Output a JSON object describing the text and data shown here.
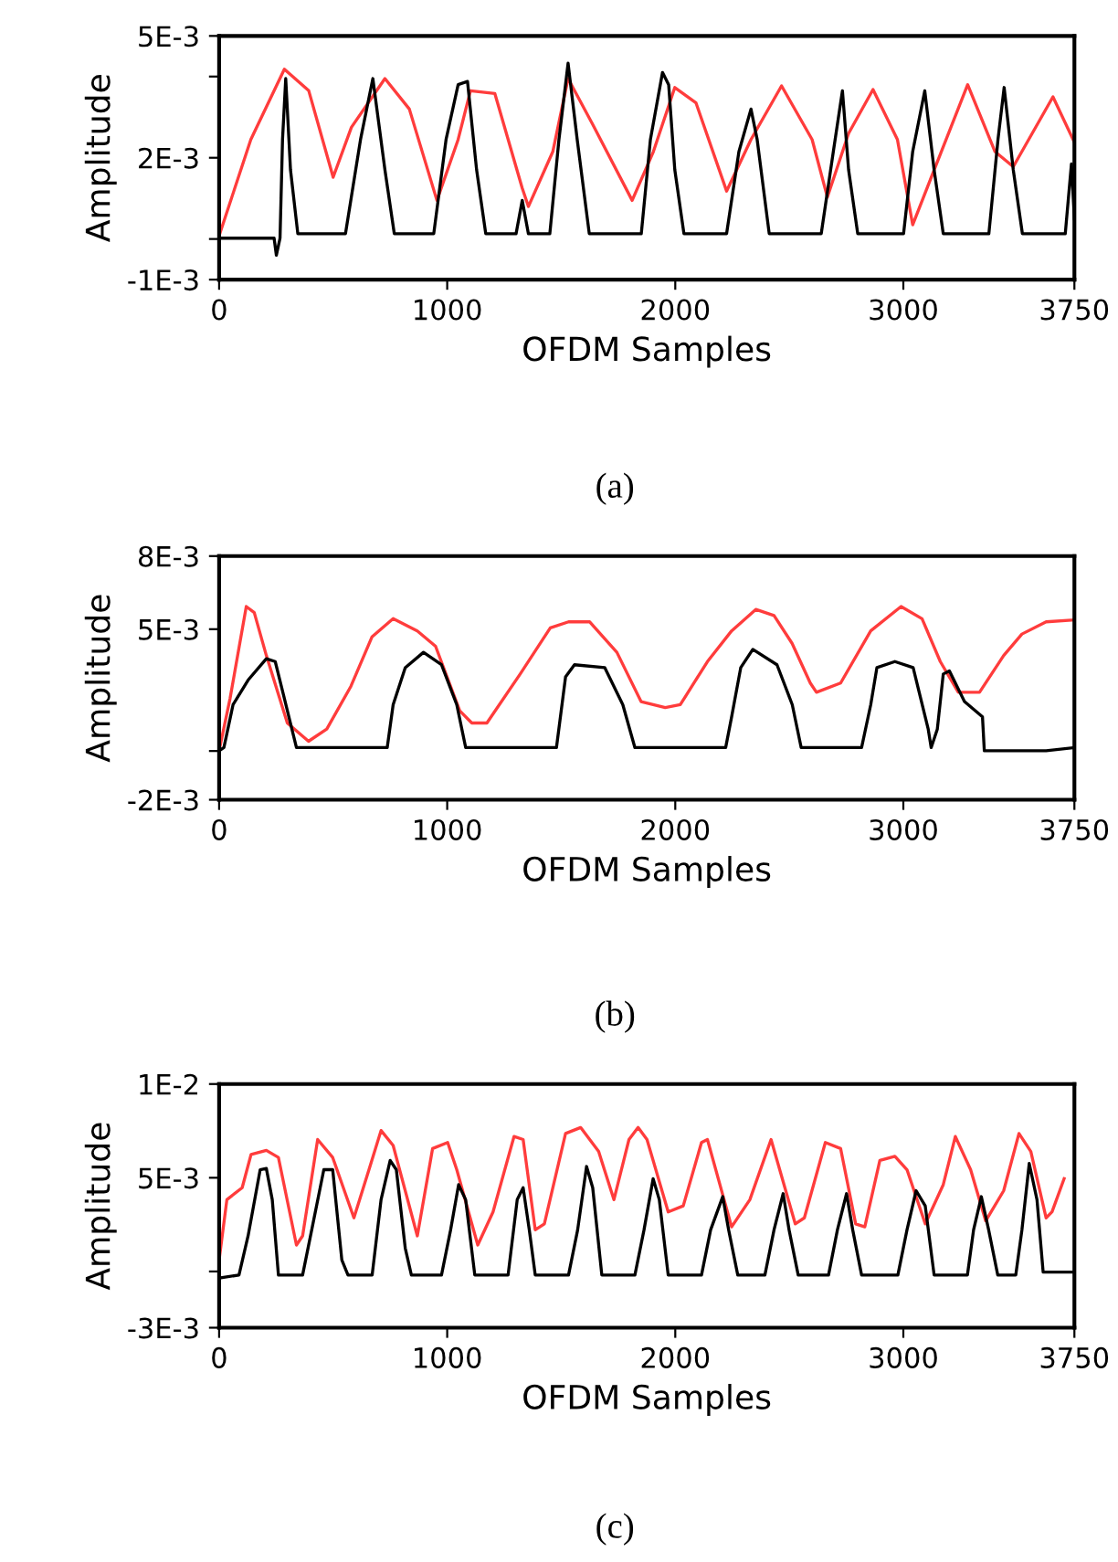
{
  "chart_data": [
    {
      "type": "line",
      "xlabel": "OFDM Samples",
      "ylabel": "Amplitude",
      "annotations": [
        "(a)"
      ],
      "xlim": [
        0,
        3750
      ],
      "xticks": [
        0,
        1000,
        2000,
        3000,
        3750
      ],
      "ylim": [
        -0.001,
        0.005
      ],
      "yticks": [
        {
          "value": 0.005,
          "label": "5E-3"
        },
        {
          "value": 0.004,
          "label": null
        },
        {
          "value": 0.002,
          "label": "2E-3"
        },
        {
          "value": 0,
          "label": null
        },
        {
          "value": -0.001,
          "label": "-1E-3"
        }
      ],
      "grid": false,
      "series": [
        {
          "color": "#ff3c3c",
          "x": [
            0,
            139,
            286,
            393,
            500,
            580,
            727,
            834,
            955,
            1048,
            1102,
            1209,
            1329,
            1356,
            1463,
            1530,
            1637,
            1811,
            1904,
            1998,
            2091,
            2225,
            2332,
            2466,
            2600,
            2667,
            2760,
            2867,
            2974,
            3041,
            3135,
            3282,
            3402,
            3482,
            3656,
            3750
          ],
          "values": [
            8e-05,
            0.00245,
            0.00418,
            0.00365,
            0.00152,
            0.00275,
            0.00395,
            0.0032,
            0.00095,
            0.00245,
            0.00365,
            0.00358,
            0.00125,
            0.0008,
            0.00215,
            0.00395,
            0.00283,
            0.00095,
            0.00215,
            0.00373,
            0.00335,
            0.00118,
            0.00245,
            0.00377,
            0.00245,
            0.00103,
            0.0026,
            0.00368,
            0.00245,
            0.00035,
            0.0017,
            0.0038,
            0.00215,
            0.00178,
            0.0035,
            0.00238
          ]
        },
        {
          "color": "#000000",
          "x": [
            0,
            241,
            251,
            267,
            278,
            292,
            313,
            345,
            554,
            620,
            674,
            727,
            768,
            941,
            995,
            1048,
            1089,
            1129,
            1169,
            1302,
            1329,
            1356,
            1450,
            1490,
            1530,
            1570,
            1623,
            1851,
            1891,
            1944,
            1971,
            1998,
            2038,
            2225,
            2279,
            2332,
            2359,
            2412,
            2640,
            2693,
            2733,
            2760,
            2800,
            3001,
            3041,
            3094,
            3135,
            3175,
            3375,
            3415,
            3442,
            3482,
            3522,
            3710,
            3737,
            3750
          ],
          "values": [
            2e-05,
            2e-05,
            -0.0004,
            2e-05,
            0.00245,
            0.00395,
            0.0017,
            0.00013,
            0.00013,
            0.00245,
            0.00395,
            0.0017,
            0.00013,
            0.00013,
            0.00245,
            0.0038,
            0.00388,
            0.0017,
            0.00013,
            0.00013,
            0.00095,
            0.00013,
            0.00013,
            0.00245,
            0.00433,
            0.00245,
            0.00013,
            0.00013,
            0.00245,
            0.0041,
            0.0038,
            0.0017,
            0.00013,
            0.00013,
            0.00215,
            0.0032,
            0.00245,
            0.00013,
            0.00013,
            0.00215,
            0.00365,
            0.0017,
            0.00013,
            0.00013,
            0.00215,
            0.00365,
            0.0017,
            0.00013,
            0.00013,
            0.00245,
            0.00373,
            0.0017,
            0.00013,
            0.00013,
            0.00185,
            0.0005
          ]
        }
      ]
    },
    {
      "type": "line",
      "xlabel": "OFDM Samples",
      "ylabel": "Amplitude",
      "annotations": [
        "(b)"
      ],
      "xlim": [
        0,
        3750
      ],
      "xticks": [
        0,
        1000,
        2000,
        3000,
        3750
      ],
      "ylim": [
        -0.002,
        0.008
      ],
      "yticks": [
        {
          "value": 0.008,
          "label": "8E-3"
        },
        {
          "value": 0.005,
          "label": "5E-3"
        },
        {
          "value": 0,
          "label": null
        },
        {
          "value": -0.002,
          "label": "-2E-3"
        }
      ],
      "grid": false,
      "series": [
        {
          "color": "#ff3c3c",
          "x": [
            0,
            48,
            119,
            154,
            207,
            299,
            392,
            472,
            578,
            670,
            763,
            869,
            949,
            1055,
            1108,
            1174,
            1320,
            1452,
            1532,
            1625,
            1744,
            1850,
            1956,
            2022,
            2141,
            2247,
            2353,
            2433,
            2512,
            2592,
            2619,
            2725,
            2857,
            2990,
            3082,
            3162,
            3241,
            3334,
            3440,
            3520,
            3626,
            3750
          ],
          "values": [
            1e-05,
            0.00216,
            0.00593,
            0.00568,
            0.00392,
            0.00115,
            0.0004,
            0.0009,
            0.00266,
            0.00468,
            0.00543,
            0.00493,
            0.0043,
            0.00165,
            0.00115,
            0.00115,
            0.00316,
            0.00505,
            0.0053,
            0.0053,
            0.00405,
            0.00203,
            0.00178,
            0.0019,
            0.00367,
            0.00493,
            0.00581,
            0.00556,
            0.00442,
            0.00279,
            0.00241,
            0.00279,
            0.00493,
            0.00593,
            0.00543,
            0.00367,
            0.00241,
            0.00241,
            0.00392,
            0.0048,
            0.0053,
            0.00538
          ]
        },
        {
          "color": "#000000",
          "x": [
            0,
            21,
            61,
            127,
            207,
            246,
            286,
            339,
            737,
            763,
            816,
            896,
            975,
            1042,
            1081,
            1479,
            1519,
            1558,
            1691,
            1770,
            1823,
            2221,
            2247,
            2287,
            2340,
            2446,
            2513,
            2552,
            2817,
            2857,
            2884,
            2963,
            3043,
            3109,
            3122,
            3149,
            3175,
            3202,
            3268,
            3347,
            3355,
            3626,
            3750
          ],
          "values": [
            1e-05,
            0.00014,
            0.0019,
            0.00291,
            0.00379,
            0.00367,
            0.00216,
            0.00014,
            0.00014,
            0.0019,
            0.00342,
            0.00405,
            0.00354,
            0.0019,
            0.00014,
            0.00014,
            0.00304,
            0.00354,
            0.00342,
            0.0019,
            0.00014,
            0.00014,
            0.0014,
            0.00342,
            0.00417,
            0.00354,
            0.0019,
            0.00014,
            0.00014,
            0.0019,
            0.00342,
            0.00367,
            0.00342,
            0.0009,
            0.00014,
            0.0009,
            0.00316,
            0.00329,
            0.00203,
            0.0014,
            1e-05,
            1e-05,
            0.00014
          ]
        }
      ]
    },
    {
      "type": "line",
      "xlabel": "OFDM Samples",
      "ylabel": "Amplitude",
      "annotations": [
        "(c)"
      ],
      "xlim": [
        0,
        3750
      ],
      "xticks": [
        0,
        1000,
        2000,
        3000,
        3750
      ],
      "ylim": [
        -0.003,
        0.01
      ],
      "yticks": [
        {
          "value": 0.01,
          "label": "1E-2"
        },
        {
          "value": 0.005,
          "label": "5E-3"
        },
        {
          "value": 0,
          "label": null
        },
        {
          "value": -0.003,
          "label": "-3E-3"
        }
      ],
      "grid": false,
      "series": [
        {
          "color": "#ff3c3c",
          "x": [
            0,
            34,
            101,
            140,
            207,
            260,
            339,
            366,
            432,
            498,
            591,
            657,
            710,
            763,
            869,
            936,
            1002,
            1042,
            1134,
            1201,
            1293,
            1333,
            1386,
            1426,
            1519,
            1585,
            1664,
            1731,
            1797,
            1837,
            1876,
            1969,
            2035,
            2115,
            2141,
            2247,
            2327,
            2420,
            2526,
            2566,
            2658,
            2725,
            2791,
            2831,
            2897,
            2963,
            3016,
            3096,
            3175,
            3228,
            3295,
            3361,
            3440,
            3507,
            3559,
            3626,
            3652,
            3705
          ],
          "values": [
            0.00061,
            0.00383,
            0.00447,
            0.00624,
            0.00646,
            0.00608,
            0.00141,
            0.0019,
            0.00704,
            0.00608,
            0.00286,
            0.00543,
            0.00752,
            0.00672,
            0.0019,
            0.00656,
            0.00688,
            0.00543,
            0.00141,
            0.00318,
            0.0072,
            0.00704,
            0.00222,
            0.00254,
            0.00736,
            0.00768,
            0.0064,
            0.00383,
            0.00704,
            0.00768,
            0.00704,
            0.00318,
            0.0035,
            0.00688,
            0.00704,
            0.00238,
            0.00383,
            0.00704,
            0.00254,
            0.00286,
            0.00688,
            0.00656,
            0.00254,
            0.00238,
            0.00592,
            0.00614,
            0.00543,
            0.00254,
            0.00463,
            0.0072,
            0.00543,
            0.0027,
            0.00431,
            0.00736,
            0.0064,
            0.00286,
            0.00318,
            0.00495
          ]
        },
        {
          "color": "#000000",
          "x": [
            0,
            87,
            127,
            180,
            207,
            233,
            260,
            366,
            406,
            459,
            498,
            538,
            565,
            671,
            710,
            750,
            777,
            816,
            843,
            975,
            1015,
            1050,
            1081,
            1121,
            1267,
            1307,
            1333,
            1360,
            1386,
            1532,
            1572,
            1611,
            1638,
            1678,
            1823,
            1863,
            1903,
            1930,
            1969,
            2115,
            2155,
            2208,
            2234,
            2274,
            2393,
            2433,
            2473,
            2499,
            2539,
            2672,
            2711,
            2751,
            2778,
            2817,
            2976,
            3016,
            3056,
            3096,
            3135,
            3281,
            3308,
            3342,
            3374,
            3414,
            3493,
            3520,
            3552,
            3586,
            3613,
            3750
          ],
          "values": [
            -0.00035,
            -0.00019,
            0.0019,
            0.00543,
            0.0055,
            0.00383,
            -0.00019,
            -0.00019,
            0.00222,
            0.00543,
            0.00543,
            0.00061,
            -0.00019,
            -0.00019,
            0.00383,
            0.00592,
            0.00543,
            0.00125,
            -0.00019,
            -0.00019,
            0.00222,
            0.00463,
            0.00383,
            -0.00019,
            -0.00019,
            0.00383,
            0.00447,
            0.00222,
            -0.00019,
            -0.00019,
            0.00222,
            0.0056,
            0.00447,
            -0.00019,
            -0.00019,
            0.00222,
            0.00495,
            0.00383,
            -0.00019,
            -0.00019,
            0.00222,
            0.00399,
            0.00222,
            -0.00019,
            -0.00019,
            0.00222,
            0.00415,
            0.00222,
            -0.00019,
            -0.00019,
            0.00222,
            0.00415,
            0.00222,
            -0.00019,
            -0.00019,
            0.00222,
            0.00431,
            0.0035,
            -0.00019,
            -0.00019,
            0.00222,
            0.00399,
            0.00222,
            -0.00019,
            -0.00019,
            0.00222,
            0.00576,
            0.00383,
            -3e-05,
            -3e-05
          ]
        }
      ]
    }
  ]
}
